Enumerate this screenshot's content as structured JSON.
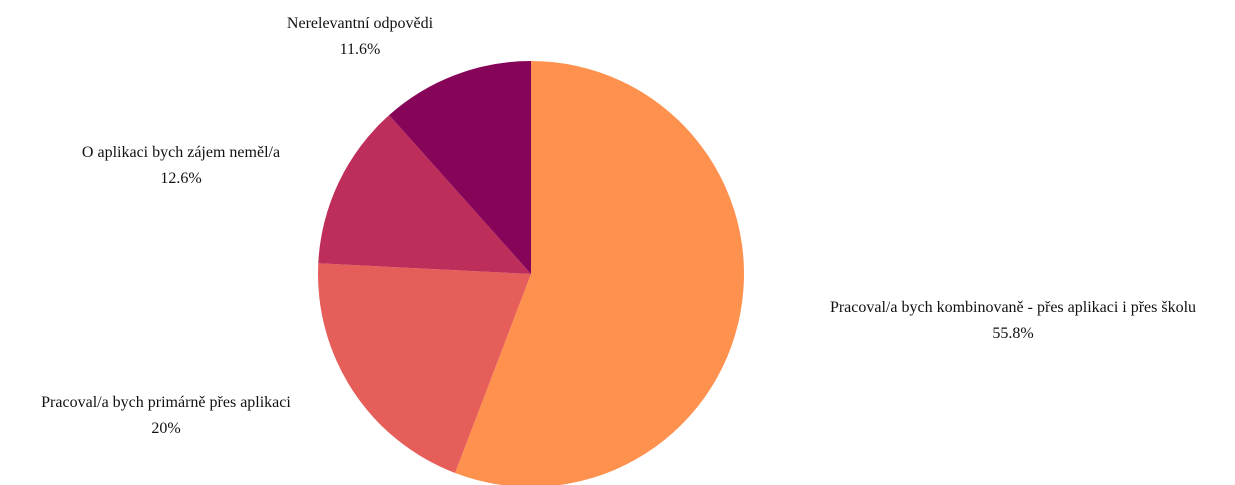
{
  "chart_data": {
    "type": "pie",
    "title": "",
    "start_angle_deg": 0,
    "direction": "clockwise",
    "slices": [
      {
        "label": "Pracoval/a bych kombinovaně - přes aplikaci i přes školu",
        "value": 55.8,
        "value_label": "55.8%",
        "color": "#FF914F"
      },
      {
        "label": "Pracoval/a bych primárně přes aplikaci",
        "value": 20,
        "value_label": "20%",
        "color": "#E65E5A"
      },
      {
        "label": "O aplikaci bych zájem neměl/a",
        "value": 12.6,
        "value_label": "12.6%",
        "color": "#BE2E5B"
      },
      {
        "label": "Nerelevantní odpovědi",
        "value": 11.6,
        "value_label": "11.6%",
        "color": "#860559"
      }
    ]
  }
}
